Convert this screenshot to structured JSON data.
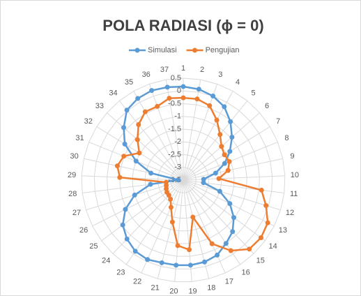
{
  "chart_data": {
    "type": "radar",
    "title": "POLA RADIASI  (ϕ = 0)",
    "categories": [
      "1",
      "2",
      "3",
      "4",
      "5",
      "6",
      "7",
      "8",
      "9",
      "10",
      "11",
      "12",
      "13",
      "14",
      "15",
      "16",
      "17",
      "18",
      "19",
      "20",
      "21",
      "22",
      "23",
      "24",
      "25",
      "26",
      "27",
      "28",
      "29",
      "30",
      "31",
      "32",
      "33",
      "34",
      "35",
      "36",
      "37"
    ],
    "series": [
      {
        "name": "Simulasi",
        "color": "#5b9bd5",
        "values": [
          0.17,
          0.12,
          0.0,
          -0.2,
          -0.55,
          -0.95,
          -1.35,
          -1.75,
          -2.2,
          -2.7,
          -2.7,
          -2.0,
          -1.45,
          -1.03,
          -0.7,
          -0.5,
          -0.27,
          -0.18,
          -0.15,
          -0.15,
          -0.15,
          -0.08,
          -0.13,
          -0.3,
          -0.54,
          -0.95,
          -1.5,
          -2.2,
          -3.3,
          -2.2,
          -1.5,
          -0.8,
          -0.38,
          0.03,
          0.17,
          0.23,
          0.2
        ]
      },
      {
        "name": "Pengujian",
        "color": "#ed7d31",
        "values": [
          -0.27,
          -0.27,
          -0.4,
          -0.8,
          -1.2,
          -1.5,
          -1.6,
          -1.55,
          -1.7,
          -2.1,
          -0.4,
          -0.1,
          0.22,
          0.3,
          0.25,
          -0.16,
          -0.76,
          -2.0,
          -0.76,
          -0.92,
          -1.8,
          -2.33,
          -2.6,
          -2.68,
          -2.7,
          -2.75,
          -2.8,
          -2.82,
          -1.0,
          -0.85,
          -0.98,
          -1.47,
          -1.1,
          -0.7,
          -0.43,
          -0.43,
          -0.24
        ]
      }
    ],
    "ylim": [
      -3.5,
      0.5
    ],
    "yticks": [
      -3.5,
      -3,
      -2.5,
      -2,
      -1.5,
      -1,
      -0.5,
      0,
      0.5
    ],
    "grid": true,
    "legend": "top"
  }
}
